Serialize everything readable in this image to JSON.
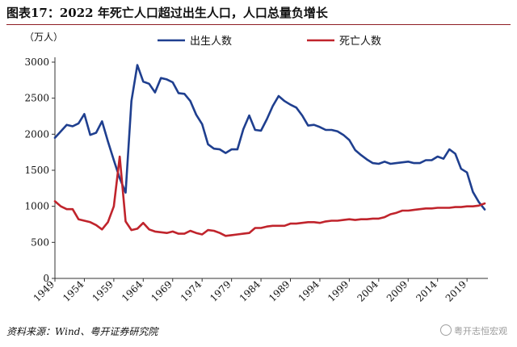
{
  "figure": {
    "title": "图表17：2022 年死亡人口超过出生人口，人口总量负增长",
    "source_label": "资料来源：",
    "source_text": "Wind、粤开证券研究院",
    "watermark": "粤开志恒宏观"
  },
  "chart_data": {
    "type": "line",
    "unit_label": "（万人）",
    "x_tick_labels": [
      "1949",
      "1954",
      "1959",
      "1964",
      "1969",
      "1974",
      "1979",
      "1984",
      "1989",
      "1994",
      "1999",
      "2004",
      "2009",
      "2014",
      "2019"
    ],
    "y_tick_labels": [
      "0",
      "500",
      "1000",
      "1500",
      "2000",
      "2500",
      "3000"
    ],
    "ylim": [
      0,
      3000
    ],
    "xlim": [
      1949,
      2022
    ],
    "grid": false,
    "legend_position": "top",
    "x": [
      1949,
      1950,
      1951,
      1952,
      1953,
      1954,
      1955,
      1956,
      1957,
      1958,
      1959,
      1960,
      1961,
      1962,
      1963,
      1964,
      1965,
      1966,
      1967,
      1968,
      1969,
      1970,
      1971,
      1972,
      1973,
      1974,
      1975,
      1976,
      1977,
      1978,
      1979,
      1980,
      1981,
      1982,
      1983,
      1984,
      1985,
      1986,
      1987,
      1988,
      1989,
      1990,
      1991,
      1992,
      1993,
      1994,
      1995,
      1996,
      1997,
      1998,
      1999,
      2000,
      2001,
      2002,
      2003,
      2004,
      2005,
      2006,
      2007,
      2008,
      2009,
      2010,
      2011,
      2012,
      2013,
      2014,
      2015,
      2016,
      2017,
      2018,
      2019,
      2020,
      2021,
      2022
    ],
    "series": [
      {
        "name": "出生人数",
        "color": "#1f3f8f",
        "values": [
          1950,
          2040,
          2130,
          2110,
          2150,
          2280,
          1990,
          2020,
          2180,
          1900,
          1640,
          1390,
          1190,
          2460,
          2960,
          2730,
          2700,
          2580,
          2780,
          2760,
          2720,
          2570,
          2560,
          2460,
          2270,
          2140,
          1860,
          1800,
          1790,
          1740,
          1790,
          1790,
          2070,
          2260,
          2060,
          2050,
          2210,
          2390,
          2530,
          2460,
          2410,
          2370,
          2260,
          2120,
          2130,
          2100,
          2060,
          2060,
          2040,
          1990,
          1920,
          1780,
          1710,
          1650,
          1600,
          1590,
          1620,
          1590,
          1600,
          1610,
          1620,
          1600,
          1600,
          1640,
          1640,
          1690,
          1660,
          1790,
          1730,
          1520,
          1470,
          1200,
          1060,
          956
        ]
      },
      {
        "name": "死亡人数",
        "color": "#c0242c",
        "values": [
          1070,
          1000,
          960,
          960,
          820,
          800,
          780,
          740,
          680,
          780,
          1000,
          1690,
          790,
          670,
          690,
          770,
          680,
          650,
          640,
          630,
          650,
          620,
          620,
          660,
          630,
          610,
          670,
          660,
          630,
          590,
          600,
          610,
          620,
          630,
          700,
          700,
          720,
          730,
          730,
          730,
          760,
          760,
          770,
          780,
          780,
          770,
          790,
          800,
          800,
          810,
          820,
          810,
          820,
          820,
          830,
          830,
          850,
          890,
          910,
          940,
          940,
          950,
          960,
          970,
          970,
          980,
          980,
          980,
          990,
          990,
          1000,
          1000,
          1010,
          1040
        ]
      }
    ]
  }
}
